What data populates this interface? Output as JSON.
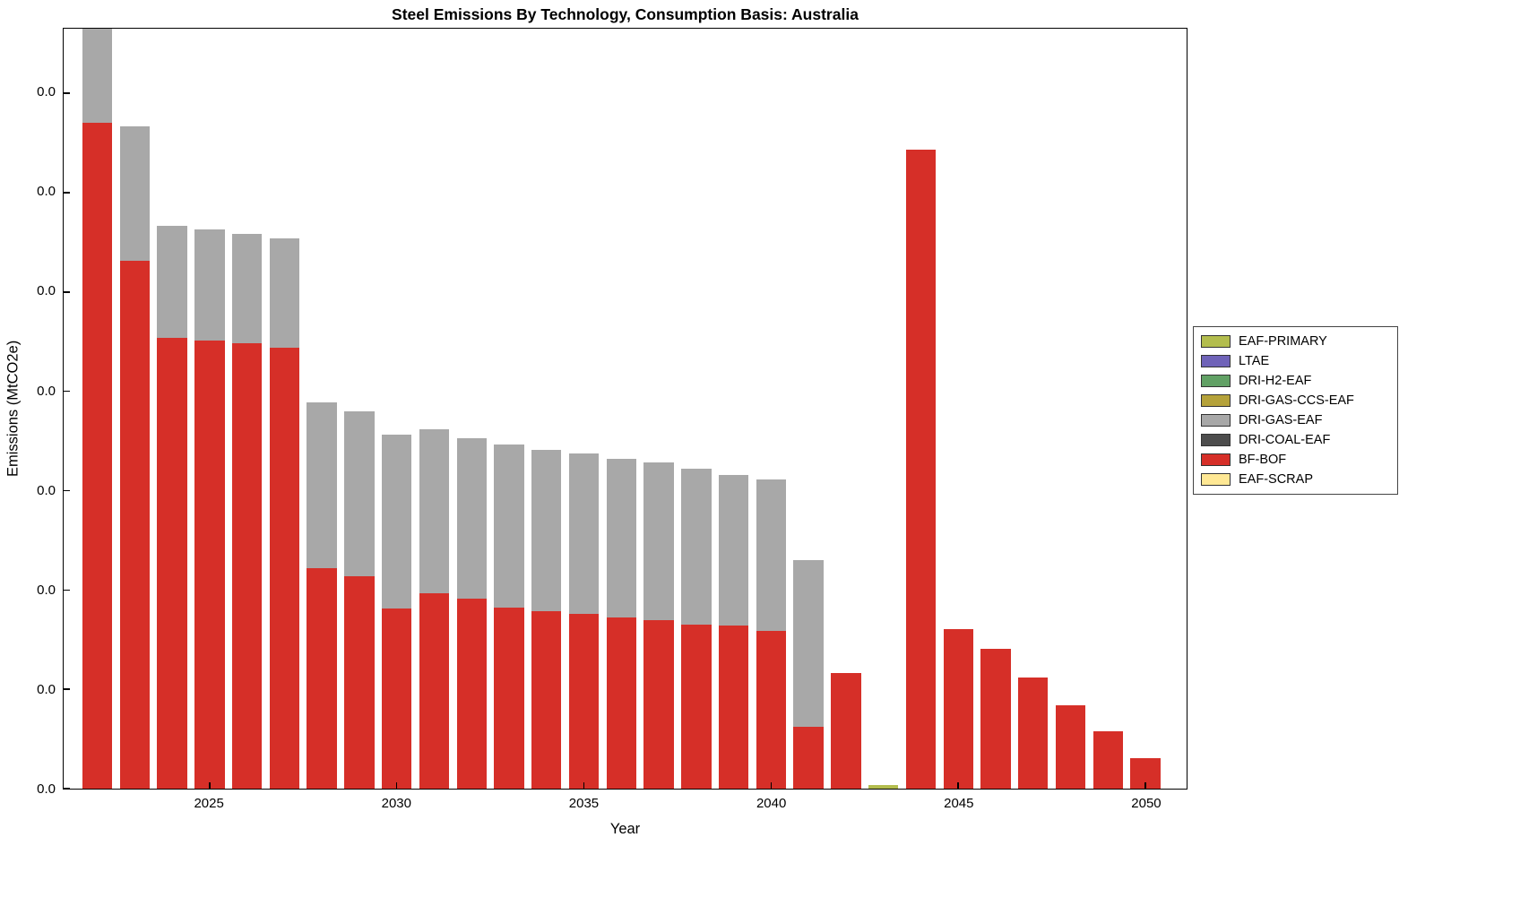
{
  "chart_data": {
    "type": "bar",
    "stacked": true,
    "title": "Steel Emissions By Technology, Consumption Basis: Australia",
    "xlabel": "Year",
    "ylabel": "Emissions (MtCO2e)",
    "grid": false,
    "xlim": [
      2021.1,
      2051.1
    ],
    "ylim": [
      0,
      7.65
    ],
    "bar_width": 0.8,
    "x": [
      2022,
      2023,
      2024,
      2025,
      2026,
      2027,
      2028,
      2029,
      2030,
      2031,
      2032,
      2033,
      2034,
      2035,
      2036,
      2037,
      2038,
      2039,
      2040,
      2041,
      2042,
      2043,
      2044,
      2045,
      2046,
      2047,
      2048,
      2049,
      2050
    ],
    "x_ticks": [
      2025,
      2030,
      2035,
      2040,
      2045,
      2050
    ],
    "y_ticks": [
      0,
      1,
      2,
      3,
      4,
      5,
      6,
      7
    ],
    "y_tick_label_text": "0.0",
    "y_units_note": "all y tick labels render as 0.0; bar values below are in y-axis tick units",
    "series": [
      {
        "name": "EAF-SCRAP",
        "color": "#ffe894",
        "values": []
      },
      {
        "name": "BF-BOF",
        "color": "#d62f28",
        "values": [
          6.7,
          5.31,
          4.54,
          4.51,
          4.48,
          4.44,
          2.22,
          2.14,
          1.81,
          1.97,
          1.91,
          1.82,
          1.79,
          1.76,
          1.72,
          1.7,
          1.65,
          1.64,
          1.59,
          0.62,
          1.16,
          0,
          6.43,
          1.61,
          1.41,
          1.12,
          0.84,
          0.58,
          0.31
        ]
      },
      {
        "name": "DRI-COAL-EAF",
        "color": "#4d4d4d",
        "values": []
      },
      {
        "name": "DRI-GAS-EAF",
        "color": "#a8a8a8",
        "values": [
          1.15,
          1.36,
          1.13,
          1.12,
          1.1,
          1.1,
          1.67,
          1.66,
          1.75,
          1.65,
          1.62,
          1.64,
          1.62,
          1.61,
          1.6,
          1.58,
          1.57,
          1.52,
          1.52,
          1.68,
          0,
          0,
          0,
          0,
          0,
          0,
          0,
          0,
          0
        ]
      },
      {
        "name": "DRI-GAS-CCS-EAF",
        "color": "#b5a23a",
        "values": []
      },
      {
        "name": "DRI-H2-EAF",
        "color": "#61a165",
        "values": []
      },
      {
        "name": "LTAE",
        "color": "#6f63b8",
        "values": []
      },
      {
        "name": "EAF-PRIMARY",
        "color": "#b3bd4e",
        "values": [
          0,
          0,
          0,
          0,
          0,
          0,
          0,
          0,
          0,
          0,
          0,
          0,
          0,
          0,
          0,
          0,
          0,
          0,
          0,
          0,
          0,
          0.04,
          0,
          0,
          0,
          0,
          0,
          0,
          0
        ]
      }
    ],
    "legend": {
      "position": "right",
      "entries": [
        {
          "label": "EAF-PRIMARY",
          "color": "#b3bd4e"
        },
        {
          "label": "LTAE",
          "color": "#6f63b8"
        },
        {
          "label": "DRI-H2-EAF",
          "color": "#61a165"
        },
        {
          "label": "DRI-GAS-CCS-EAF",
          "color": "#b5a23a"
        },
        {
          "label": "DRI-GAS-EAF",
          "color": "#a8a8a8"
        },
        {
          "label": "DRI-COAL-EAF",
          "color": "#4d4d4d"
        },
        {
          "label": "BF-BOF",
          "color": "#d62f28"
        },
        {
          "label": "EAF-SCRAP",
          "color": "#ffe894"
        }
      ]
    }
  }
}
